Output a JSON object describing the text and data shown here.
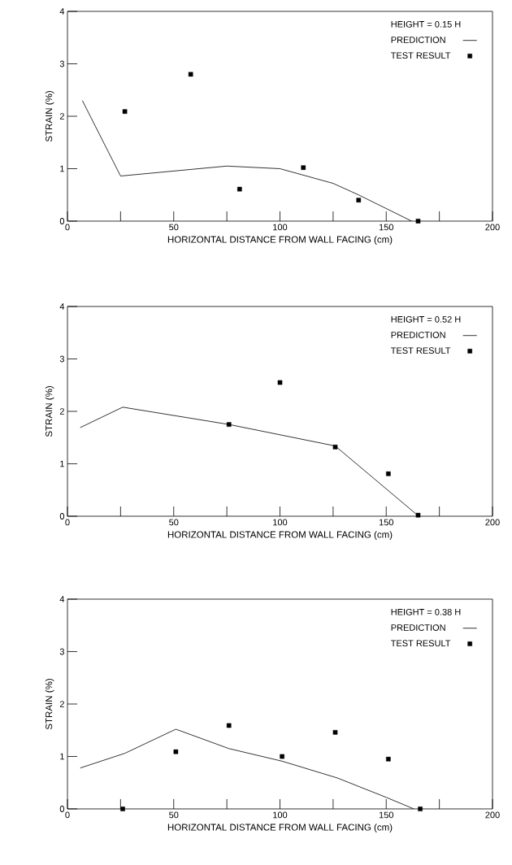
{
  "chart_data": [
    {
      "type": "line",
      "legend_title": "HEIGHT = 0.15 H",
      "xlabel": "HORIZONTAL DISTANCE FROM WALL FACING (cm)",
      "ylabel": "STRAIN (%)",
      "xlim": [
        0,
        200
      ],
      "ylim": [
        0,
        4
      ],
      "xticks": [
        0,
        {
          "value": 25,
          "label": null
        },
        50,
        {
          "value": 75,
          "label": null
        },
        100,
        {
          "value": 125,
          "label": null
        },
        150,
        {
          "value": 175,
          "label": null
        },
        200
      ],
      "yticks": [
        0,
        1,
        2,
        3,
        4
      ],
      "legend": "top right",
      "grid": false,
      "series": [
        {
          "name": "PREDICTION",
          "color": "#000000",
          "marker": "none",
          "line_style": "solid",
          "x": [
            7,
            25,
            75,
            100,
            125,
            137,
            162
          ],
          "values": [
            2.3,
            0.86,
            1.05,
            1.0,
            0.72,
            0.5,
            0
          ]
        },
        {
          "name": "TEST RESULT",
          "type": "scatter",
          "color": "#000000",
          "marker": "square",
          "x": [
            27,
            58,
            81,
            111,
            137,
            165
          ],
          "values": [
            2.09,
            2.8,
            0.61,
            1.02,
            0.4,
            0
          ]
        }
      ]
    },
    {
      "type": "line",
      "legend_title": "HEIGHT = 0.52 H",
      "xlabel": "HORIZONTAL DISTANCE FROM WALL FACING (cm)",
      "ylabel": "STRAIN (%)",
      "xlim": [
        0,
        200
      ],
      "ylim": [
        0,
        4
      ],
      "xticks": [
        0,
        {
          "value": 25,
          "label": null
        },
        50,
        {
          "value": 75,
          "label": null
        },
        100,
        {
          "value": 125,
          "label": null
        },
        150,
        {
          "value": 175,
          "label": null
        },
        200
      ],
      "yticks": [
        0,
        1,
        2,
        3,
        4
      ],
      "legend": "top right",
      "grid": false,
      "series": [
        {
          "name": "PREDICTION",
          "color": "#000000",
          "marker": "none",
          "line_style": "solid",
          "x": [
            6,
            26,
            76,
            126,
            165
          ],
          "values": [
            1.69,
            2.08,
            1.75,
            1.34,
            0.01
          ]
        },
        {
          "name": "TEST RESULT",
          "type": "scatter",
          "color": "#000000",
          "marker": "square",
          "x": [
            76,
            100,
            126,
            151,
            165
          ],
          "values": [
            1.75,
            2.55,
            1.32,
            0.81,
            0.02
          ]
        }
      ]
    },
    {
      "type": "line",
      "legend_title": "HEIGHT = 0.38 H",
      "xlabel": "HORIZONTAL DISTANCE FROM WALL FACING (cm)",
      "ylabel": "STRAIN (%)",
      "xlim": [
        0,
        200
      ],
      "ylim": [
        0,
        4
      ],
      "xticks": [
        0,
        {
          "value": 25,
          "label": null
        },
        50,
        {
          "value": 75,
          "label": null
        },
        100,
        {
          "value": 125,
          "label": null
        },
        150,
        {
          "value": 175,
          "label": null
        },
        200
      ],
      "yticks": [
        0,
        1,
        2,
        3,
        4
      ],
      "legend": "top right",
      "grid": false,
      "series": [
        {
          "name": "PREDICTION",
          "color": "#000000",
          "marker": "none",
          "line_style": "solid",
          "x": [
            6,
            27,
            51,
            76,
            101,
            127,
            150,
            163
          ],
          "values": [
            0.78,
            1.06,
            1.52,
            1.15,
            0.91,
            0.59,
            0.22,
            0
          ]
        },
        {
          "name": "TEST RESULT",
          "type": "scatter",
          "color": "#000000",
          "marker": "square",
          "x": [
            26,
            51,
            76,
            101,
            126,
            151,
            166
          ],
          "values": [
            0,
            1.09,
            1.59,
            1.0,
            1.46,
            0.95,
            0
          ]
        }
      ]
    }
  ]
}
